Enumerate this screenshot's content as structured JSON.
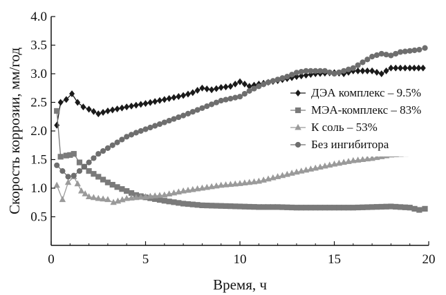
{
  "chart_data": {
    "type": "line",
    "title": "",
    "xlabel": "Время, ч",
    "ylabel": "Скорость коррозии, мм/год",
    "xlim": [
      0,
      20
    ],
    "ylim": [
      0.0,
      4.0
    ],
    "x_ticks": [
      "0",
      "5",
      "10",
      "15",
      "20"
    ],
    "y_ticks": [
      "0.5",
      "1.0",
      "1.5",
      "2.0",
      "2.5",
      "3.0",
      "3.5",
      "4.0"
    ],
    "grid": false,
    "legend_position": "right",
    "series": [
      {
        "name": "ДЭА комплекс – 9.5%",
        "marker": "diamond",
        "color": "#1a1a1a",
        "points": [
          [
            0.3,
            2.1
          ],
          [
            0.5,
            2.5
          ],
          [
            0.8,
            2.55
          ],
          [
            1.1,
            2.65
          ],
          [
            1.4,
            2.5
          ],
          [
            1.7,
            2.42
          ],
          [
            2.0,
            2.38
          ],
          [
            2.5,
            2.3
          ],
          [
            3.0,
            2.35
          ],
          [
            4.0,
            2.42
          ],
          [
            5.0,
            2.48
          ],
          [
            6.0,
            2.55
          ],
          [
            7.0,
            2.62
          ],
          [
            7.5,
            2.67
          ],
          [
            8.0,
            2.75
          ],
          [
            8.5,
            2.72
          ],
          [
            9.0,
            2.76
          ],
          [
            9.5,
            2.78
          ],
          [
            10.0,
            2.86
          ],
          [
            10.5,
            2.78
          ],
          [
            11.0,
            2.82
          ],
          [
            12.0,
            2.88
          ],
          [
            13.0,
            2.95
          ],
          [
            14.0,
            3.0
          ],
          [
            15.0,
            3.02
          ],
          [
            15.5,
            3.0
          ],
          [
            16.0,
            3.05
          ],
          [
            17.0,
            3.05
          ],
          [
            17.5,
            3.0
          ],
          [
            18.0,
            3.1
          ],
          [
            19.0,
            3.1
          ],
          [
            19.7,
            3.1
          ]
        ]
      },
      {
        "name": "МЭА-комплекс – 83%",
        "marker": "square",
        "color": "#7a7a7a",
        "points": [
          [
            0.3,
            2.35
          ],
          [
            0.5,
            1.55
          ],
          [
            0.8,
            1.57
          ],
          [
            1.0,
            1.58
          ],
          [
            1.2,
            1.6
          ],
          [
            1.5,
            1.45
          ],
          [
            2.0,
            1.3
          ],
          [
            2.5,
            1.2
          ],
          [
            3.0,
            1.1
          ],
          [
            3.5,
            1.02
          ],
          [
            4.0,
            0.95
          ],
          [
            4.5,
            0.88
          ],
          [
            5.0,
            0.84
          ],
          [
            6.0,
            0.78
          ],
          [
            7.0,
            0.73
          ],
          [
            8.0,
            0.7
          ],
          [
            9.0,
            0.69
          ],
          [
            10.0,
            0.68
          ],
          [
            11.0,
            0.67
          ],
          [
            12.0,
            0.67
          ],
          [
            13.0,
            0.66
          ],
          [
            14.0,
            0.66
          ],
          [
            15.0,
            0.66
          ],
          [
            16.0,
            0.66
          ],
          [
            17.0,
            0.67
          ],
          [
            18.0,
            0.68
          ],
          [
            19.0,
            0.66
          ],
          [
            19.5,
            0.62
          ],
          [
            19.8,
            0.64
          ]
        ]
      },
      {
        "name": "К соль – 53%",
        "marker": "triangle",
        "color": "#9a9a9a",
        "points": [
          [
            0.3,
            1.05
          ],
          [
            0.6,
            0.8
          ],
          [
            0.9,
            1.1
          ],
          [
            1.2,
            1.2
          ],
          [
            1.6,
            0.95
          ],
          [
            2.0,
            0.85
          ],
          [
            2.5,
            0.82
          ],
          [
            3.0,
            0.8
          ],
          [
            3.3,
            0.75
          ],
          [
            4.0,
            0.82
          ],
          [
            5.0,
            0.85
          ],
          [
            6.0,
            0.88
          ],
          [
            7.0,
            0.95
          ],
          [
            8.0,
            1.0
          ],
          [
            9.0,
            1.05
          ],
          [
            10.0,
            1.08
          ],
          [
            11.0,
            1.12
          ],
          [
            12.0,
            1.2
          ],
          [
            13.0,
            1.28
          ],
          [
            14.0,
            1.35
          ],
          [
            15.0,
            1.42
          ],
          [
            16.0,
            1.48
          ],
          [
            17.0,
            1.52
          ],
          [
            18.0,
            1.58
          ],
          [
            19.0,
            1.6
          ],
          [
            19.8,
            1.68
          ]
        ]
      },
      {
        "name": "Без ингибитора",
        "marker": "circle",
        "color": "#6e6e6e",
        "points": [
          [
            0.3,
            1.4
          ],
          [
            0.6,
            1.3
          ],
          [
            0.9,
            1.2
          ],
          [
            1.2,
            1.22
          ],
          [
            1.5,
            1.3
          ],
          [
            2.0,
            1.45
          ],
          [
            2.5,
            1.6
          ],
          [
            3.0,
            1.7
          ],
          [
            3.5,
            1.8
          ],
          [
            4.0,
            1.9
          ],
          [
            4.5,
            1.97
          ],
          [
            5.0,
            2.03
          ],
          [
            6.0,
            2.15
          ],
          [
            7.0,
            2.27
          ],
          [
            8.0,
            2.4
          ],
          [
            9.0,
            2.53
          ],
          [
            10.0,
            2.6
          ],
          [
            10.5,
            2.7
          ],
          [
            11.0,
            2.78
          ],
          [
            11.5,
            2.85
          ],
          [
            12.0,
            2.9
          ],
          [
            12.5,
            2.95
          ],
          [
            13.0,
            3.02
          ],
          [
            13.5,
            3.05
          ],
          [
            14.0,
            3.05
          ],
          [
            14.5,
            3.05
          ],
          [
            15.0,
            3.0
          ],
          [
            15.5,
            3.05
          ],
          [
            16.0,
            3.1
          ],
          [
            16.5,
            3.2
          ],
          [
            17.0,
            3.3
          ],
          [
            17.5,
            3.35
          ],
          [
            18.0,
            3.32
          ],
          [
            18.5,
            3.38
          ],
          [
            19.0,
            3.4
          ],
          [
            19.5,
            3.42
          ],
          [
            19.8,
            3.45
          ]
        ]
      }
    ]
  }
}
